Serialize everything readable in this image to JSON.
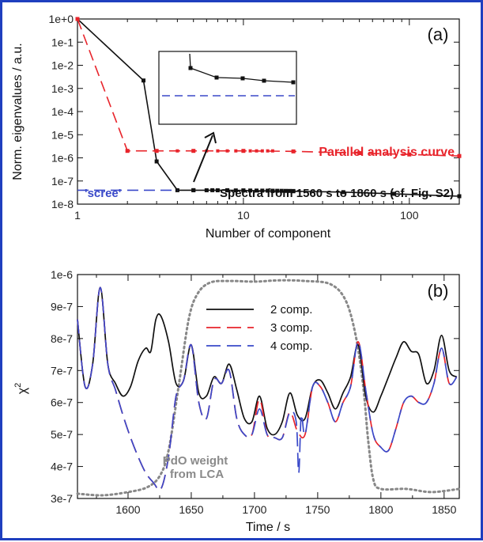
{
  "chart_data": [
    {
      "type": "line",
      "panel_label": "(a)",
      "xlabel": "Number of component",
      "ylabel": "Norm. eigenvalues / a.u.",
      "xscale": "log",
      "yscale": "log",
      "xlim": [
        1,
        200
      ],
      "ylim": [
        1e-08,
        1
      ],
      "x_ticks": [
        "1",
        "10",
        "100"
      ],
      "y_ticks": [
        "1e+0",
        "1e-1",
        "1e-2",
        "1e-3",
        "1e-4",
        "1e-5",
        "1e-6",
        "1e-7",
        "1e-8"
      ],
      "series": [
        {
          "name": "Spectra from 1560 s to 1860 s (cf. Fig. S2)",
          "color": "#111111",
          "style": "solid-markers",
          "x": [
            1,
            2.5,
            3,
            4,
            5,
            6.5,
            8,
            10,
            15,
            20,
            40,
            80,
            200
          ],
          "y": [
            1,
            0.0022,
            7e-07,
            4e-08,
            4e-08,
            4e-08,
            4e-08,
            3.9e-08,
            3.7e-08,
            3.6e-08,
            3.3e-08,
            2.8e-08,
            2.2e-08
          ]
        },
        {
          "name": "Parallel analysis curve",
          "color": "#e8242b",
          "style": "dashed-markers",
          "x": [
            1,
            2,
            3,
            5,
            10,
            20,
            50,
            100,
            200
          ],
          "y": [
            1,
            2e-06,
            2e-06,
            2e-06,
            2e-06,
            1.9e-06,
            1.6e-06,
            1.4e-06,
            1.2e-06
          ]
        },
        {
          "name": "'scree'",
          "color": "#3a49c9",
          "style": "dashed",
          "x": [
            1,
            4
          ],
          "y": [
            4e-08,
            4e-08
          ]
        }
      ],
      "annotations": [
        "Parallel analysis curve",
        "Spectra from 1560 s to 1860 s (cf. Fig. S2)",
        "'scree'"
      ]
    },
    {
      "type": "line",
      "panel_label": "(b)",
      "xlabel": "Time / s",
      "ylabel": "χ",
      "ylabel_sup": "2",
      "xlim": [
        1560,
        1862
      ],
      "ylim": [
        3e-07,
        1e-06
      ],
      "x_ticks": [
        "1600",
        "1650",
        "1700",
        "1750",
        "1800",
        "1850"
      ],
      "y_ticks": [
        "1e-6",
        "9e-7",
        "8e-7",
        "7e-7",
        "6e-7",
        "5e-7",
        "4e-7",
        "3e-7"
      ],
      "legend": [
        "2 comp.",
        "3 comp.",
        "4 comp."
      ],
      "series": [
        {
          "name": "2 comp.",
          "color": "#111111",
          "x": [
            1560,
            1566,
            1572,
            1578,
            1584,
            1590,
            1596,
            1602,
            1608,
            1614,
            1618,
            1622,
            1626,
            1632,
            1638,
            1644,
            1650,
            1656,
            1662,
            1668,
            1674,
            1680,
            1686,
            1692,
            1698,
            1704,
            1710,
            1716,
            1722,
            1728,
            1734,
            1740,
            1746,
            1752,
            1758,
            1764,
            1770,
            1776,
            1782,
            1788,
            1794,
            1800,
            1806,
            1812,
            1818,
            1824,
            1830,
            1836,
            1842,
            1848,
            1854,
            1860
          ],
          "y": [
            8.6e-07,
            6.5e-07,
            7.2e-07,
            9.6e-07,
            7.2e-07,
            6.6e-07,
            6.2e-07,
            6.5e-07,
            7.3e-07,
            7.7e-07,
            7.6e-07,
            8.6e-07,
            8.7e-07,
            7.9e-07,
            6.6e-07,
            6.7e-07,
            7.8e-07,
            6.3e-07,
            6.2e-07,
            6.8e-07,
            6.6e-07,
            7.2e-07,
            6.4e-07,
            5.5e-07,
            5.4e-07,
            6.2e-07,
            5.2e-07,
            5e-07,
            5.4e-07,
            6.3e-07,
            5.6e-07,
            5.5e-07,
            6.5e-07,
            6.7e-07,
            6.3e-07,
            5.8e-07,
            6.3e-07,
            6.8e-07,
            7.8e-07,
            6.2e-07,
            5.7e-07,
            6.2e-07,
            6.8e-07,
            7.4e-07,
            7.9e-07,
            7.6e-07,
            7.5e-07,
            6.6e-07,
            7e-07,
            8.1e-07,
            7e-07,
            6.8e-07
          ]
        },
        {
          "name": "3 comp.",
          "color": "#e8242b",
          "x": [
            1560,
            1566,
            1572,
            1578,
            1584,
            1590,
            1596,
            1602,
            1608,
            1614,
            1620,
            1626,
            1632,
            1638,
            1644,
            1650,
            1656,
            1662,
            1668,
            1674,
            1680,
            1686,
            1692,
            1698,
            1704,
            1710,
            1716,
            1722,
            1728,
            1734,
            1740,
            1746,
            1752,
            1758,
            1764,
            1770,
            1776,
            1782,
            1788,
            1794,
            1800,
            1806,
            1812,
            1818,
            1824,
            1830,
            1836,
            1842,
            1848,
            1854,
            1860
          ],
          "y": [
            8.6e-07,
            6.5e-07,
            7.2e-07,
            9.6e-07,
            7.2e-07,
            6.4e-07,
            5.6e-07,
            4.9e-07,
            4.3e-07,
            3.8e-07,
            3.5e-07,
            3.3e-07,
            4.3e-07,
            6.2e-07,
            6.7e-07,
            7.8e-07,
            6e-07,
            5.5e-07,
            6.7e-07,
            6.6e-07,
            7e-07,
            5.5e-07,
            5e-07,
            5e-07,
            6.1e-07,
            5e-07,
            4.9e-07,
            4.9e-07,
            5.7e-07,
            5.1e-07,
            5e-07,
            6.5e-07,
            6.5e-07,
            6e-07,
            5.4e-07,
            6e-07,
            6.5e-07,
            7.9e-07,
            6.4e-07,
            5e-07,
            4.6e-07,
            4.5e-07,
            5.2e-07,
            6e-07,
            6.2e-07,
            6e-07,
            6e-07,
            6.6e-07,
            7.7e-07,
            6.6e-07,
            6.8e-07
          ]
        },
        {
          "name": "4 comp.",
          "color": "#3a49c9",
          "x": [
            1560,
            1566,
            1572,
            1578,
            1584,
            1590,
            1596,
            1602,
            1608,
            1614,
            1620,
            1626,
            1632,
            1638,
            1644,
            1650,
            1656,
            1662,
            1668,
            1674,
            1680,
            1686,
            1692,
            1698,
            1704,
            1710,
            1716,
            1722,
            1728,
            1733,
            1735,
            1737,
            1740,
            1746,
            1752,
            1758,
            1764,
            1770,
            1776,
            1782,
            1788,
            1794,
            1800,
            1806,
            1812,
            1818,
            1824,
            1830,
            1836,
            1842,
            1848,
            1854,
            1860
          ],
          "y": [
            8.6e-07,
            6.5e-07,
            7.2e-07,
            9.6e-07,
            7.2e-07,
            6.4e-07,
            5.6e-07,
            4.9e-07,
            4.3e-07,
            3.8e-07,
            3.5e-07,
            3.3e-07,
            4.3e-07,
            6.2e-07,
            6.7e-07,
            7.8e-07,
            6e-07,
            5.5e-07,
            6.7e-07,
            6.6e-07,
            7e-07,
            5.5e-07,
            5e-07,
            5e-07,
            5.8e-07,
            5e-07,
            4.9e-07,
            4.9e-07,
            5.7e-07,
            5.4e-07,
            3.8e-07,
            5.6e-07,
            5e-07,
            6.5e-07,
            6.5e-07,
            6e-07,
            5.4e-07,
            6e-07,
            6.5e-07,
            7.9e-07,
            6.4e-07,
            5e-07,
            4.6e-07,
            4.5e-07,
            5.2e-07,
            6e-07,
            6.2e-07,
            6e-07,
            6e-07,
            6.6e-07,
            7.7e-07,
            6.6e-07,
            6.8e-07
          ]
        },
        {
          "name": "PdO weight from LCA",
          "color": "#888888",
          "style": "dotted",
          "x": [
            1560,
            1580,
            1600,
            1615,
            1625,
            1632,
            1640,
            1648,
            1655,
            1665,
            1680,
            1700,
            1720,
            1740,
            1760,
            1772,
            1780,
            1786,
            1790,
            1794,
            1800,
            1820,
            1840,
            1862
          ],
          "y": [
            3.15e-07,
            3.1e-07,
            3.2e-07,
            3.35e-07,
            3.7e-07,
            4.5e-07,
            6.5e-07,
            8.6e-07,
            9.4e-07,
            9.75e-07,
            9.8e-07,
            9.78e-07,
            9.82e-07,
            9.8e-07,
            9.7e-07,
            9.2e-07,
            8.1e-07,
            6.5e-07,
            4.8e-07,
            3.6e-07,
            3.3e-07,
            3.3e-07,
            3.2e-07,
            3.3e-07
          ]
        }
      ],
      "annotations": [
        "PdO weight",
        "from LCA"
      ]
    }
  ]
}
